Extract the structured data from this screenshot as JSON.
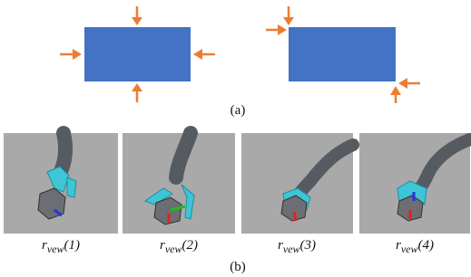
{
  "figure": {
    "part_a_label": "(a)",
    "part_b_label": "(b)",
    "captions": [
      {
        "base": "r",
        "sub": "vew",
        "arg": "(1)"
      },
      {
        "base": "r",
        "sub": "vew",
        "arg": "(2)"
      },
      {
        "base": "r",
        "sub": "vew",
        "arg": "(3)"
      },
      {
        "base": "r",
        "sub": "vew",
        "arg": "(4)"
      }
    ]
  }
}
